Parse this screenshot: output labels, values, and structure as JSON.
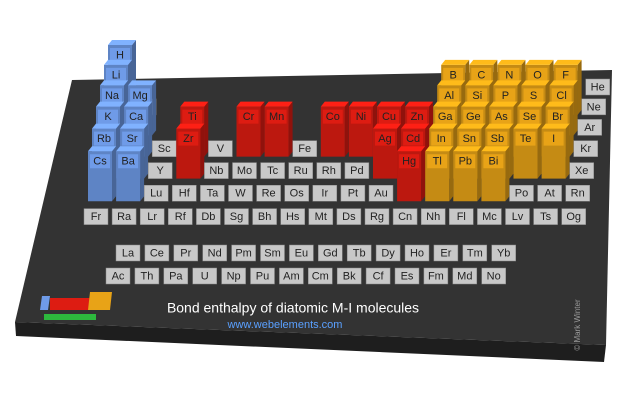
{
  "title": "Bond enthalpy of diatomic M-I molecules",
  "url": "www.webelements.com",
  "copyright": "© Mark Winter",
  "colors": {
    "s": "#6f9be8",
    "d": "#dd1c12",
    "p": "#e8a317",
    "none": "#c8c8c8"
  },
  "table": {
    "rows": [
      [
        {
          "symbol": "H",
          "bar": true
        },
        null,
        null,
        null,
        null,
        null,
        null,
        null,
        null,
        null,
        null,
        null,
        null,
        null,
        null,
        null,
        null,
        {
          "symbol": "He"
        }
      ],
      [
        {
          "symbol": "Li",
          "bar": true
        },
        {
          "symbol": "Be"
        },
        null,
        null,
        null,
        null,
        null,
        null,
        null,
        null,
        null,
        null,
        {
          "symbol": "B",
          "bar": true
        },
        {
          "symbol": "C",
          "bar": true
        },
        {
          "symbol": "N",
          "bar": true
        },
        {
          "symbol": "O",
          "bar": true
        },
        {
          "symbol": "F",
          "bar": true
        },
        {
          "symbol": "Ne"
        }
      ],
      [
        {
          "symbol": "Na",
          "bar": true
        },
        {
          "symbol": "Mg",
          "bar": true
        },
        null,
        null,
        null,
        null,
        null,
        null,
        null,
        null,
        null,
        null,
        {
          "symbol": "Al",
          "bar": true
        },
        {
          "symbol": "Si",
          "bar": true
        },
        {
          "symbol": "P",
          "bar": true
        },
        {
          "symbol": "S",
          "bar": true
        },
        {
          "symbol": "Cl",
          "bar": true
        },
        {
          "symbol": "Ar"
        }
      ],
      [
        {
          "symbol": "K",
          "bar": true
        },
        {
          "symbol": "Ca",
          "bar": true
        },
        {
          "symbol": "Sc"
        },
        {
          "symbol": "Ti",
          "bar": true
        },
        {
          "symbol": "V"
        },
        {
          "symbol": "Cr",
          "bar": true
        },
        {
          "symbol": "Mn",
          "bar": true
        },
        {
          "symbol": "Fe"
        },
        {
          "symbol": "Co",
          "bar": true
        },
        {
          "symbol": "Ni",
          "bar": true
        },
        {
          "symbol": "Cu",
          "bar": true
        },
        {
          "symbol": "Zn",
          "bar": true
        },
        {
          "symbol": "Ga",
          "bar": true
        },
        {
          "symbol": "Ge",
          "bar": true
        },
        {
          "symbol": "As",
          "bar": true
        },
        {
          "symbol": "Se",
          "bar": true
        },
        {
          "symbol": "Br",
          "bar": true
        },
        {
          "symbol": "Kr"
        }
      ],
      [
        {
          "symbol": "Rb",
          "bar": true
        },
        {
          "symbol": "Sr",
          "bar": true
        },
        {
          "symbol": "Y"
        },
        {
          "symbol": "Zr",
          "bar": true
        },
        {
          "symbol": "Nb"
        },
        {
          "symbol": "Mo"
        },
        {
          "symbol": "Tc"
        },
        {
          "symbol": "Ru"
        },
        {
          "symbol": "Rh"
        },
        {
          "symbol": "Pd"
        },
        {
          "symbol": "Ag",
          "bar": true
        },
        {
          "symbol": "Cd",
          "bar": true
        },
        {
          "symbol": "In",
          "bar": true
        },
        {
          "symbol": "Sn",
          "bar": true
        },
        {
          "symbol": "Sb",
          "bar": true
        },
        {
          "symbol": "Te",
          "bar": true
        },
        {
          "symbol": "I",
          "bar": true
        },
        {
          "symbol": "Xe"
        }
      ],
      [
        {
          "symbol": "Cs",
          "bar": true
        },
        {
          "symbol": "Ba",
          "bar": true
        },
        {
          "symbol": "Lu"
        },
        {
          "symbol": "Hf"
        },
        {
          "symbol": "Ta"
        },
        {
          "symbol": "W"
        },
        {
          "symbol": "Re"
        },
        {
          "symbol": "Os"
        },
        {
          "symbol": "Ir"
        },
        {
          "symbol": "Pt"
        },
        {
          "symbol": "Au"
        },
        {
          "symbol": "Hg",
          "bar": true
        },
        {
          "symbol": "Tl",
          "bar": true
        },
        {
          "symbol": "Pb",
          "bar": true
        },
        {
          "symbol": "Bi",
          "bar": true
        },
        {
          "symbol": "Po"
        },
        {
          "symbol": "At"
        },
        {
          "symbol": "Rn"
        }
      ],
      [
        {
          "symbol": "Fr"
        },
        {
          "symbol": "Ra"
        },
        {
          "symbol": "Lr"
        },
        {
          "symbol": "Rf"
        },
        {
          "symbol": "Db"
        },
        {
          "symbol": "Sg"
        },
        {
          "symbol": "Bh"
        },
        {
          "symbol": "Hs"
        },
        {
          "symbol": "Mt"
        },
        {
          "symbol": "Ds"
        },
        {
          "symbol": "Rg"
        },
        {
          "symbol": "Cn"
        },
        {
          "symbol": "Nh"
        },
        {
          "symbol": "Fl"
        },
        {
          "symbol": "Mc"
        },
        {
          "symbol": "Lv"
        },
        {
          "symbol": "Ts"
        },
        {
          "symbol": "Og"
        }
      ]
    ],
    "f_rows": [
      [
        {
          "symbol": "La"
        },
        {
          "symbol": "Ce"
        },
        {
          "symbol": "Pr"
        },
        {
          "symbol": "Nd"
        },
        {
          "symbol": "Pm"
        },
        {
          "symbol": "Sm"
        },
        {
          "symbol": "Eu"
        },
        {
          "symbol": "Gd"
        },
        {
          "symbol": "Tb"
        },
        {
          "symbol": "Dy"
        },
        {
          "symbol": "Ho"
        },
        {
          "symbol": "Er"
        },
        {
          "symbol": "Tm"
        },
        {
          "symbol": "Yb"
        }
      ],
      [
        {
          "symbol": "Ac"
        },
        {
          "symbol": "Th"
        },
        {
          "symbol": "Pa"
        },
        {
          "symbol": "U"
        },
        {
          "symbol": "Np"
        },
        {
          "symbol": "Pu"
        },
        {
          "symbol": "Am"
        },
        {
          "symbol": "Cm"
        },
        {
          "symbol": "Bk"
        },
        {
          "symbol": "Cf"
        },
        {
          "symbol": "Es"
        },
        {
          "symbol": "Fm"
        },
        {
          "symbol": "Md"
        },
        {
          "symbol": "No"
        }
      ]
    ]
  }
}
